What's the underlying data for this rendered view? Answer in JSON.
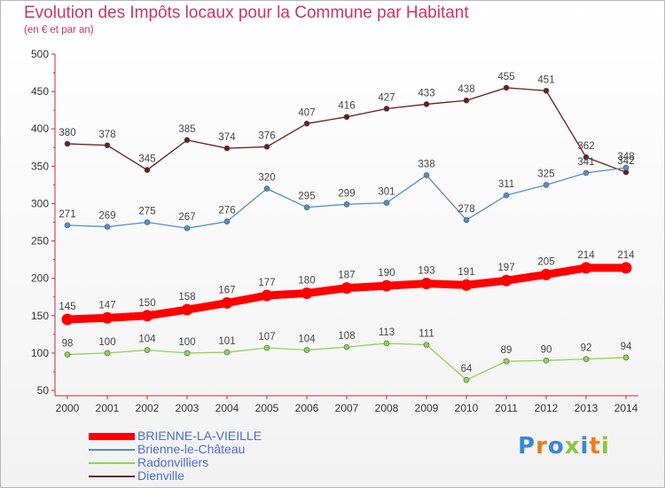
{
  "title": "Evolution des Impôts locaux pour la Commune par Habitant",
  "subtitle": "(en € et par an)",
  "logo": {
    "text": "Proxiti",
    "colors": [
      "#3a86d8",
      "#f07a1a",
      "#3a86d8",
      "#8cc63f",
      "#3a86d8",
      "#f07a1a",
      "#8cc63f"
    ]
  },
  "chart_data": {
    "type": "line",
    "x": [
      2000,
      2001,
      2002,
      2003,
      2004,
      2005,
      2006,
      2007,
      2008,
      2009,
      2010,
      2011,
      2012,
      2013,
      2014
    ],
    "ylim": [
      50,
      500
    ],
    "yticks": [
      50,
      100,
      150,
      200,
      250,
      300,
      350,
      400,
      450,
      500
    ],
    "grid": false,
    "legend_position": "bottom-left",
    "series": [
      {
        "name": "BRIENNE-LA-VIEILLE",
        "color": "#ff0000",
        "values": [
          145,
          147,
          150,
          158,
          167,
          177,
          180,
          187,
          190,
          193,
          191,
          197,
          205,
          214,
          214
        ]
      },
      {
        "name": "Brienne-le-Château",
        "color": "#4f8fd0",
        "values": [
          271,
          269,
          275,
          267,
          276,
          320,
          295,
          299,
          301,
          338,
          278,
          311,
          325,
          341,
          348
        ]
      },
      {
        "name": "Radonvilliers",
        "color": "#8cd650",
        "values": [
          98,
          100,
          104,
          100,
          101,
          107,
          104,
          108,
          113,
          111,
          64,
          89,
          90,
          92,
          94
        ]
      },
      {
        "name": "Dienville",
        "color": "#6b1c1c",
        "values": [
          380,
          378,
          345,
          385,
          374,
          376,
          407,
          416,
          427,
          433,
          438,
          455,
          451,
          362,
          342
        ]
      }
    ]
  }
}
